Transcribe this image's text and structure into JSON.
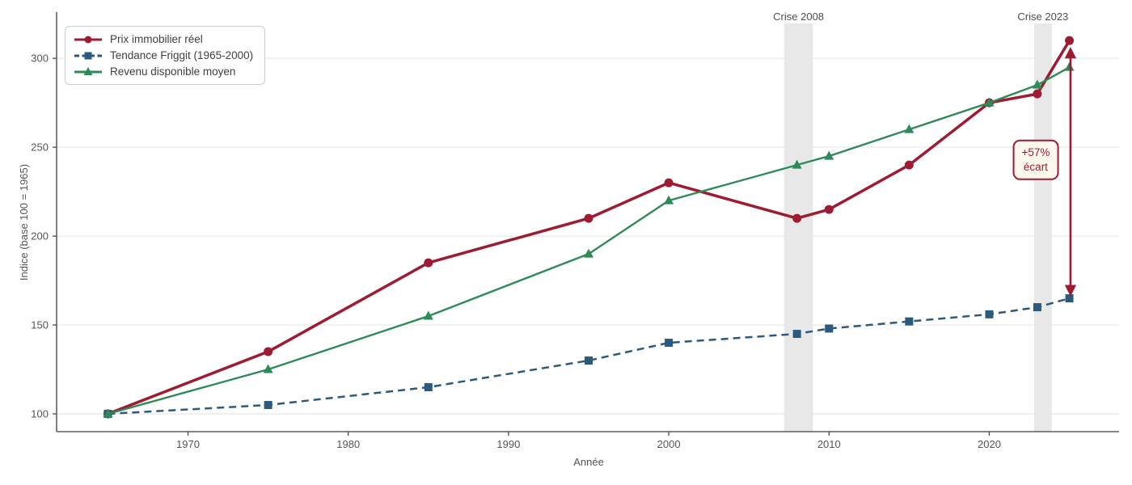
{
  "chart_data": {
    "type": "line",
    "title": "",
    "xlabel": "Année",
    "ylabel": "Indice (base 100 = 1965)",
    "xlim": [
      1961.8,
      2028.1
    ],
    "ylim": [
      90,
      326
    ],
    "xticks": [
      1970,
      1980,
      1990,
      2000,
      2010,
      2020
    ],
    "yticks": [
      100,
      150,
      200,
      250,
      300
    ],
    "grid": "horizontal-only",
    "legend_position": "upper-left",
    "x": [
      1965,
      1975,
      1985,
      1995,
      2000,
      2008,
      2010,
      2015,
      2020,
      2023,
      2025
    ],
    "series": [
      {
        "name": "Prix immobilier réel",
        "color": "#9e1b32",
        "marker": "circle",
        "dash": "solid",
        "line_width": 3.5,
        "values": [
          100,
          135,
          185,
          210,
          230,
          210,
          215,
          240,
          275,
          280,
          310
        ]
      },
      {
        "name": "Tendance Friggit (1965-2000)",
        "color": "#2b5a7d",
        "marker": "square",
        "dash": "dashed",
        "line_width": 2.5,
        "values": [
          100,
          105,
          115,
          130,
          140,
          145,
          148,
          152,
          156,
          160,
          165
        ]
      },
      {
        "name": "Revenu disponible moyen",
        "color": "#2e8b57",
        "marker": "triangle",
        "dash": "solid",
        "line_width": 2.4,
        "values": [
          100,
          125,
          155,
          190,
          220,
          240,
          245,
          260,
          275,
          285,
          295
        ]
      }
    ],
    "bands": [
      {
        "label": "Crise 2008",
        "from": 2007.2,
        "to": 2009.0,
        "color": "#e8e8e8"
      },
      {
        "label": "Crise 2023",
        "from": 2022.8,
        "to": 2023.9,
        "color": "#e8e8e8"
      }
    ],
    "annotation": {
      "line1": "+57%",
      "line2": "écart",
      "box_year": 2022.9,
      "box_value": 243,
      "arrow_year": 2025.07,
      "arrow_from_value": 168,
      "arrow_to_value": 304.5,
      "color": "#9e1b32",
      "bg": "#fdf8ee"
    },
    "colors": {
      "grid": "#e8e8e8",
      "spine": "#3d3d3d",
      "tick_label": "#555555"
    }
  }
}
